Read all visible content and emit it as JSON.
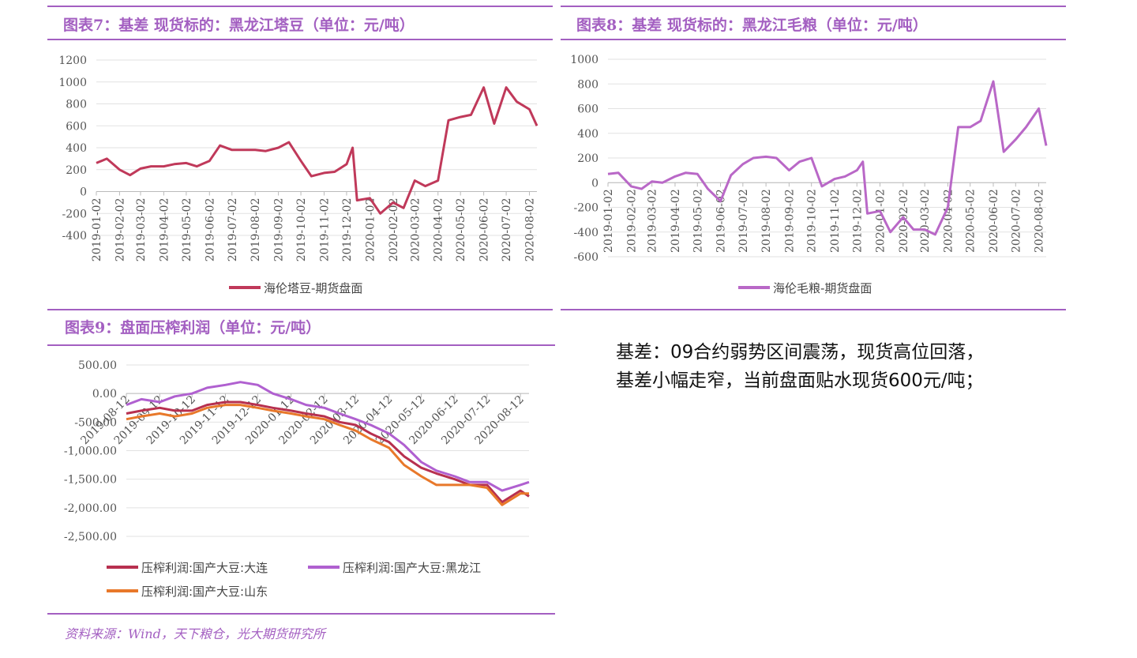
{
  "chart_data": [
    {
      "type": "line",
      "title": "图表7：基差 现货标的：黑龙江塔豆（单位：元/吨）",
      "x": [
        "2019-01-02",
        "2019-01-16",
        "2019-02-02",
        "2019-02-16",
        "2019-03-02",
        "2019-03-16",
        "2019-04-02",
        "2019-04-16",
        "2019-05-02",
        "2019-05-16",
        "2019-06-02",
        "2019-06-16",
        "2019-07-02",
        "2019-07-16",
        "2019-08-02",
        "2019-08-16",
        "2019-09-02",
        "2019-09-16",
        "2019-10-02",
        "2019-10-16",
        "2019-11-02",
        "2019-11-16",
        "2019-12-02",
        "2019-12-10",
        "2019-12-16",
        "2020-01-02",
        "2020-01-16",
        "2020-02-02",
        "2020-02-16",
        "2020-03-02",
        "2020-03-16",
        "2020-04-02",
        "2020-04-16",
        "2020-05-02",
        "2020-05-16",
        "2020-06-02",
        "2020-06-16",
        "2020-07-02",
        "2020-07-16",
        "2020-08-02",
        "2020-08-12"
      ],
      "series": [
        {
          "name": "海伦塔豆-期货盘面",
          "color": "#c0395a",
          "values": [
            260,
            300,
            200,
            150,
            210,
            230,
            230,
            250,
            260,
            230,
            280,
            420,
            380,
            380,
            380,
            370,
            400,
            450,
            280,
            140,
            170,
            180,
            250,
            400,
            -80,
            -60,
            -200,
            -100,
            -150,
            100,
            50,
            100,
            650,
            680,
            700,
            950,
            620,
            950,
            820,
            750,
            600
          ]
        }
      ],
      "xlim": [
        "2019-01-02",
        "2020-08-12"
      ],
      "xticks": [
        "2019-01-02",
        "2019-02-02",
        "2019-03-02",
        "2019-04-02",
        "2019-05-02",
        "2019-06-02",
        "2019-07-02",
        "2019-08-02",
        "2019-09-02",
        "2019-10-02",
        "2019-11-02",
        "2019-12-02",
        "2020-01-02",
        "2020-02-02",
        "2020-03-02",
        "2020-04-02",
        "2020-05-02",
        "2020-06-02",
        "2020-07-02",
        "2020-08-02"
      ],
      "ylim": [
        -400,
        1200
      ],
      "yticks": [
        -400,
        -200,
        0,
        200,
        400,
        600,
        800,
        1000,
        1200
      ],
      "grid": true,
      "legend": "bottom"
    },
    {
      "type": "line",
      "title": "图表8：基差 现货标的：黑龙江毛粮（单位：元/吨）",
      "x": [
        "2019-01-02",
        "2019-01-16",
        "2019-02-02",
        "2019-02-16",
        "2019-03-02",
        "2019-03-16",
        "2019-04-02",
        "2019-04-16",
        "2019-05-02",
        "2019-05-16",
        "2019-06-02",
        "2019-06-16",
        "2019-07-02",
        "2019-07-16",
        "2019-08-02",
        "2019-08-16",
        "2019-09-02",
        "2019-09-16",
        "2019-10-02",
        "2019-10-16",
        "2019-11-02",
        "2019-11-16",
        "2019-12-02",
        "2019-12-10",
        "2019-12-16",
        "2020-01-02",
        "2020-01-16",
        "2020-02-02",
        "2020-02-16",
        "2020-03-02",
        "2020-03-16",
        "2020-04-02",
        "2020-04-16",
        "2020-05-02",
        "2020-05-16",
        "2020-06-02",
        "2020-06-16",
        "2020-07-02",
        "2020-07-16",
        "2020-08-02",
        "2020-08-12"
      ],
      "series": [
        {
          "name": "海伦毛粮-期货盘面",
          "color": "#b968c7",
          "values": [
            70,
            80,
            -30,
            -50,
            10,
            0,
            50,
            80,
            70,
            -50,
            -150,
            60,
            150,
            200,
            210,
            200,
            100,
            170,
            200,
            -30,
            30,
            50,
            100,
            170,
            -250,
            -230,
            -400,
            -280,
            -380,
            -380,
            -420,
            -200,
            450,
            450,
            500,
            820,
            250,
            350,
            450,
            600,
            300
          ]
        }
      ],
      "xlim": [
        "2019-01-02",
        "2020-08-12"
      ],
      "xticks": [
        "2019-01-02",
        "2019-02-02",
        "2019-03-02",
        "2019-04-02",
        "2019-05-02",
        "2019-06-02",
        "2019-07-02",
        "2019-08-02",
        "2019-09-02",
        "2019-10-02",
        "2019-11-02",
        "2019-12-02",
        "2020-01-02",
        "2020-02-02",
        "2020-03-02",
        "2020-04-02",
        "2020-05-02",
        "2020-06-02",
        "2020-07-02",
        "2020-08-02"
      ],
      "ylim": [
        -600,
        1000
      ],
      "yticks": [
        -600,
        -400,
        -200,
        0,
        200,
        400,
        600,
        800,
        1000
      ],
      "grid": true,
      "legend": "bottom"
    },
    {
      "type": "line",
      "title": "图表9：盘面压榨利润（单位：元/吨）",
      "x": [
        "2019-08-12",
        "2019-08-26",
        "2019-09-12",
        "2019-09-26",
        "2019-10-12",
        "2019-10-26",
        "2019-11-12",
        "2019-11-26",
        "2019-12-12",
        "2019-12-26",
        "2020-01-12",
        "2020-01-26",
        "2020-02-12",
        "2020-02-26",
        "2020-03-12",
        "2020-03-26",
        "2020-04-12",
        "2020-04-26",
        "2020-05-12",
        "2020-05-26",
        "2020-06-12",
        "2020-06-26",
        "2020-07-12",
        "2020-07-26",
        "2020-08-12",
        "2020-08-20"
      ],
      "series": [
        {
          "name": "压榨利润:国产大豆:大连",
          "color": "#b7304f",
          "values": [
            -350,
            -300,
            -250,
            -300,
            -300,
            -200,
            -150,
            -150,
            -200,
            -250,
            -300,
            -350,
            -400,
            -500,
            -550,
            -700,
            -850,
            -1100,
            -1300,
            -1400,
            -1500,
            -1600,
            -1600,
            -1900,
            -1700,
            -1800
          ]
        },
        {
          "name": "压榨利润:国产大豆:黑龙江",
          "color": "#b060d0",
          "values": [
            -200,
            -100,
            -150,
            -50,
            0,
            100,
            150,
            200,
            150,
            0,
            -100,
            -200,
            -250,
            -350,
            -450,
            -550,
            -700,
            -900,
            -1200,
            -1350,
            -1450,
            -1550,
            -1550,
            -1700,
            -1600,
            -1550
          ]
        },
        {
          "name": "压榨利润:国产大豆:山东",
          "color": "#e8782a",
          "values": [
            -450,
            -400,
            -350,
            -400,
            -350,
            -250,
            -200,
            -200,
            -250,
            -300,
            -350,
            -400,
            -450,
            -550,
            -650,
            -800,
            -950,
            -1250,
            -1450,
            -1600,
            -1600,
            -1600,
            -1650,
            -1950,
            -1750,
            -1750
          ]
        }
      ],
      "xlim": [
        "2019-08-12",
        "2020-08-20"
      ],
      "xticks": [
        "2019-08-12",
        "2019-09-12",
        "2019-10-12",
        "2019-11-12",
        "2019-12-12",
        "2020-01-12",
        "2020-02-12",
        "2020-03-12",
        "2020-04-12",
        "2020-05-12",
        "2020-06-12",
        "2020-07-12",
        "2020-08-12"
      ],
      "ylim": [
        -2500,
        500
      ],
      "yticks": [
        {
          "value": -2500,
          "label": "-2,500.00"
        },
        {
          "value": -2000,
          "label": "-2,000.00"
        },
        {
          "value": -1500,
          "label": "-1,500.00"
        },
        {
          "value": -1000,
          "label": "-1,000.00"
        },
        {
          "value": -500,
          "label": "-500.00"
        },
        {
          "value": 0,
          "label": "0.00"
        },
        {
          "value": 500,
          "label": "500.00"
        }
      ],
      "grid": true,
      "legend": "bottom"
    }
  ],
  "commentary": [
    "基差：09合约弱势区间震荡，现货高位回落，",
    "基差小幅走窄，当前盘面贴水现货600元/吨；"
  ],
  "source": "资料来源：Wind，天下粮仓，光大期货研究所"
}
